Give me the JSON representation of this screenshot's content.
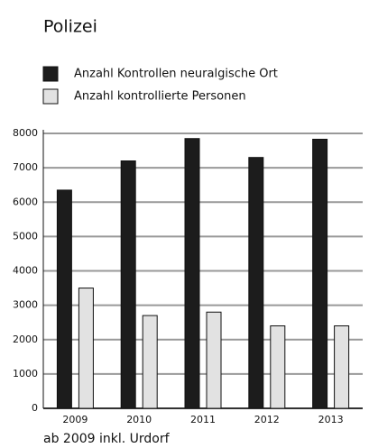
{
  "chart_data": {
    "type": "bar",
    "title": "Polizei",
    "categories": [
      "2009",
      "2010",
      "2011",
      "2012",
      "2013"
    ],
    "series": [
      {
        "name": "Anzahl Kontrollen neuralgische Ort",
        "color": "#1c1c1c",
        "values": [
          6350,
          7200,
          7850,
          7300,
          7830
        ]
      },
      {
        "name": "Anzahl kontrollierte Personen",
        "color": "#e2e2e2",
        "values": [
          3500,
          2700,
          2800,
          2400,
          2400
        ]
      }
    ],
    "ylim": [
      0,
      8000
    ],
    "yticks": [
      0,
      1000,
      2000,
      3000,
      4000,
      5000,
      6000,
      7000,
      8000
    ],
    "grid": true,
    "note": "ab 2009 inkl. Urdorf"
  }
}
